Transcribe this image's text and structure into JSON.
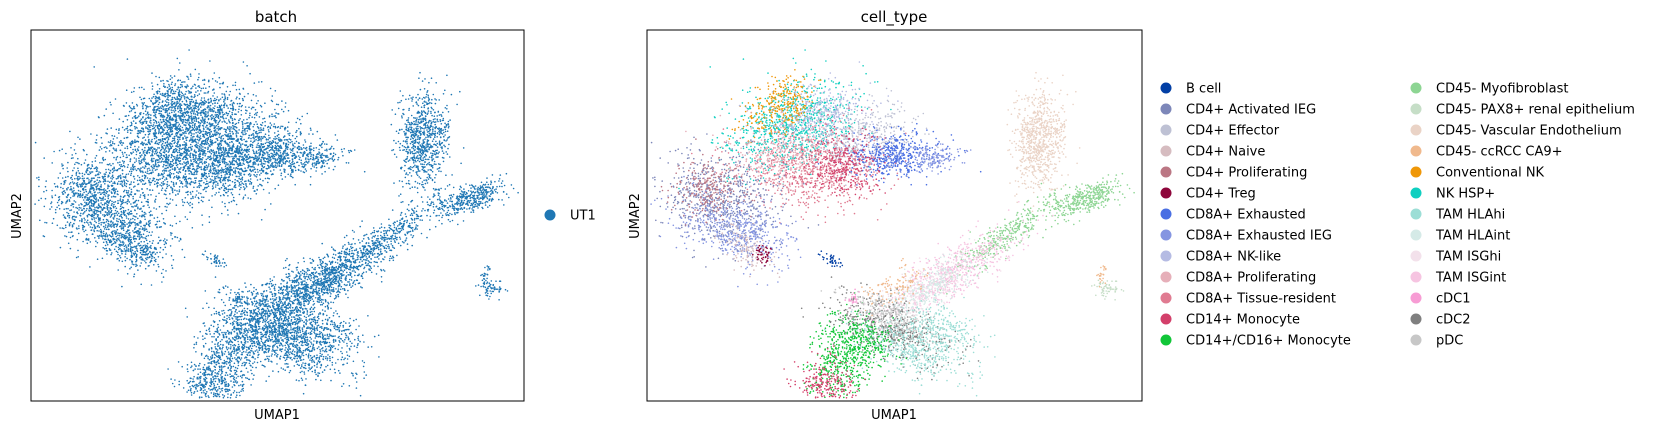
{
  "chart_data": [
    {
      "type": "scatter",
      "title": "batch",
      "xlabel": "UMAP1",
      "ylabel": "UMAP2",
      "grid": false,
      "legend_placement": "right",
      "series": [
        {
          "name": "UT1",
          "color": "#1f77b4"
        }
      ]
    },
    {
      "type": "scatter",
      "title": "cell_type",
      "xlabel": "UMAP1",
      "ylabel": "UMAP2",
      "grid": false,
      "legend_placement": "right, two columns",
      "series": [
        {
          "name": "B cell",
          "color": "#023fa5"
        },
        {
          "name": "CD4+ Activated IEG",
          "color": "#7d87b9"
        },
        {
          "name": "CD4+ Effector",
          "color": "#bec1d4"
        },
        {
          "name": "CD4+ Naive",
          "color": "#d6bcc0"
        },
        {
          "name": "CD4+ Proliferating",
          "color": "#bb7784"
        },
        {
          "name": "CD4+ Treg",
          "color": "#8e063b"
        },
        {
          "name": "CD8A+ Exhausted",
          "color": "#4a6fe3"
        },
        {
          "name": "CD8A+ Exhausted IEG",
          "color": "#8595e1"
        },
        {
          "name": "CD8A+ NK-like",
          "color": "#b5bbe3"
        },
        {
          "name": "CD8A+ Proliferating",
          "color": "#e6afb9"
        },
        {
          "name": "CD8A+ Tissue-resident",
          "color": "#e07b91"
        },
        {
          "name": "CD14+ Monocyte",
          "color": "#d33f6a"
        },
        {
          "name": "CD14+/CD16+ Monocyte",
          "color": "#11c638"
        },
        {
          "name": "CD45- Myofibroblast",
          "color": "#8dd593"
        },
        {
          "name": "CD45- PAX8+ renal epithelium",
          "color": "#c6dec7"
        },
        {
          "name": "CD45- Vascular Endothelium",
          "color": "#ead3c6"
        },
        {
          "name": "CD45- ccRCC CA9+",
          "color": "#f0b98d"
        },
        {
          "name": "Conventional NK",
          "color": "#ef9708"
        },
        {
          "name": "NK HSP+",
          "color": "#0fcfc0"
        },
        {
          "name": "TAM HLAhi",
          "color": "#9cded6"
        },
        {
          "name": "TAM HLAint",
          "color": "#d5eae7"
        },
        {
          "name": "TAM ISGhi",
          "color": "#f3e1eb"
        },
        {
          "name": "TAM ISGint",
          "color": "#f6c4e1"
        },
        {
          "name": "cDC1",
          "color": "#f79cd4"
        },
        {
          "name": "cDC2",
          "color": "#7f7f7f"
        },
        {
          "name": "pDC",
          "color": "#c7c7c7"
        }
      ]
    }
  ]
}
